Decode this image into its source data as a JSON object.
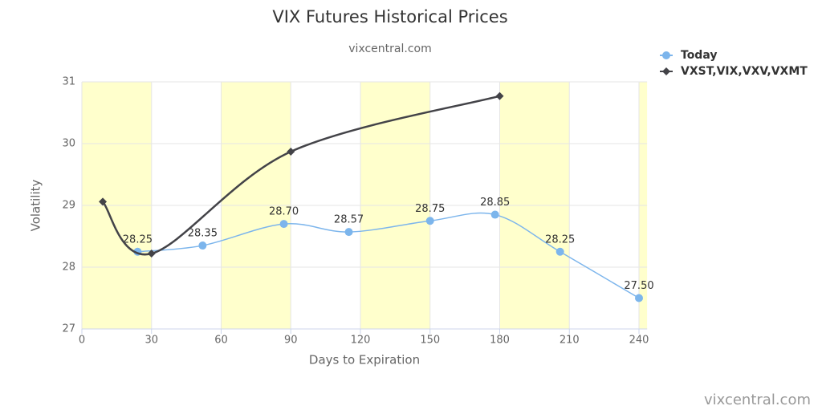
{
  "chart_data": {
    "type": "line",
    "title": "VIX Futures Historical Prices",
    "subtitle": "vixcentral.com",
    "credit": "vixcentral.com",
    "x_label": "Days to Expiration",
    "y_label": "Volatility",
    "xlim": [
      0,
      243.5
    ],
    "xticks": [
      0,
      30,
      60,
      90,
      120,
      150,
      180,
      210,
      240
    ],
    "ylim": [
      27,
      31
    ],
    "yticks": [
      27,
      28,
      29,
      30,
      31
    ],
    "grid": true,
    "band_color": "#ffffcc",
    "legend": "top-right",
    "series": [
      {
        "name": "Today",
        "color": "#7cb5ec",
        "marker": "circle",
        "smooth": true,
        "x": [
          24,
          52,
          87,
          115,
          150,
          178,
          206,
          240
        ],
        "values": [
          28.25,
          28.35,
          28.7,
          28.57,
          28.75,
          28.85,
          28.25,
          27.5
        ],
        "value_labels": [
          "28.25",
          "28.35",
          "28.70",
          "28.57",
          "28.75",
          "28.85",
          "28.25",
          "27.50"
        ]
      },
      {
        "name": "VXST,VIX,VXV,VXMT",
        "color": "#434348",
        "marker": "diamond",
        "smooth": true,
        "x": [
          9,
          30,
          90,
          180
        ],
        "values": [
          29.06,
          28.22,
          29.87,
          30.77
        ]
      }
    ]
  }
}
